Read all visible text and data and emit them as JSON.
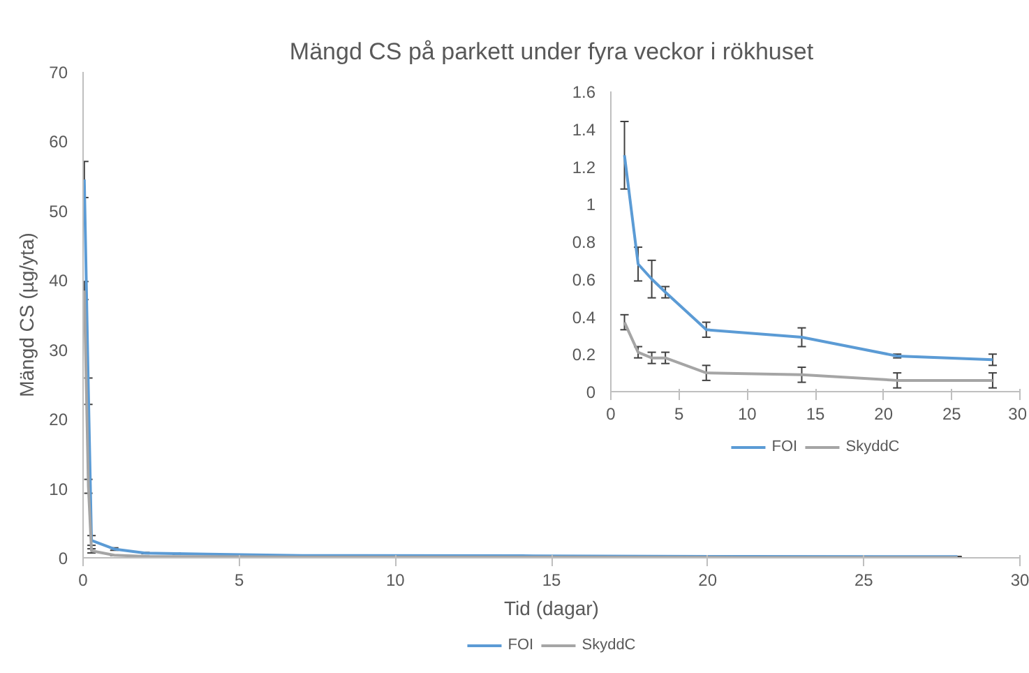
{
  "chart_data": [
    {
      "type": "line",
      "title": "Mängd CS på parkett under fyra veckor i rökhuset",
      "xlabel": "Tid (dagar)",
      "ylabel": "Mängd CS (µg/yta)",
      "xlim": [
        0,
        30
      ],
      "ylim": [
        0,
        70
      ],
      "xticks": [
        0,
        5,
        10,
        15,
        20,
        25,
        30
      ],
      "yticks": [
        0,
        10,
        20,
        30,
        40,
        50,
        60,
        70
      ],
      "grid": false,
      "legend": "bottom",
      "marker": "none",
      "x": [
        0.04,
        0.17,
        0.27,
        1,
        2,
        3,
        4,
        7,
        14,
        21,
        28
      ],
      "series": [
        {
          "name": "FOI",
          "color": "#5b9bd5",
          "values": [
            54.5,
            24,
            2.5,
            1.26,
            0.68,
            0.6,
            0.53,
            0.33,
            0.29,
            0.19,
            0.17
          ],
          "errors": [
            2.6,
            1.9,
            0.7,
            0.18,
            0.09,
            0.1,
            0.03,
            0.04,
            0.05,
            0.01,
            0.03
          ]
        },
        {
          "name": "SkyddC",
          "color": "#a5a5a5",
          "values": [
            38.5,
            10.3,
            1.0,
            0.37,
            0.21,
            0.18,
            0.18,
            0.1,
            0.09,
            0.06,
            0.06
          ],
          "errors": [
            1.3,
            1.0,
            0.3,
            0.04,
            0.03,
            0.03,
            0.03,
            0.04,
            0.04,
            0.04,
            0.04
          ]
        }
      ]
    },
    {
      "type": "line",
      "xlim": [
        0,
        30
      ],
      "ylim": [
        0,
        1.6
      ],
      "xticks": [
        0,
        5,
        10,
        15,
        20,
        25,
        30
      ],
      "yticks": [
        0,
        0.2,
        0.4,
        0.6,
        0.8,
        1,
        1.2,
        1.4,
        1.6
      ],
      "grid": false,
      "legend": "bottom",
      "marker": "none",
      "x": [
        1,
        2,
        3,
        4,
        7,
        14,
        21,
        28
      ],
      "series": [
        {
          "name": "FOI",
          "color": "#5b9bd5",
          "values": [
            1.26,
            0.68,
            0.6,
            0.53,
            0.33,
            0.29,
            0.19,
            0.17
          ],
          "errors": [
            0.18,
            0.09,
            0.1,
            0.03,
            0.04,
            0.05,
            0.01,
            0.03
          ]
        },
        {
          "name": "SkyddC",
          "color": "#a5a5a5",
          "values": [
            0.37,
            0.21,
            0.18,
            0.18,
            0.1,
            0.09,
            0.06,
            0.06
          ],
          "errors": [
            0.04,
            0.03,
            0.03,
            0.03,
            0.04,
            0.04,
            0.04,
            0.04
          ]
        }
      ]
    }
  ]
}
